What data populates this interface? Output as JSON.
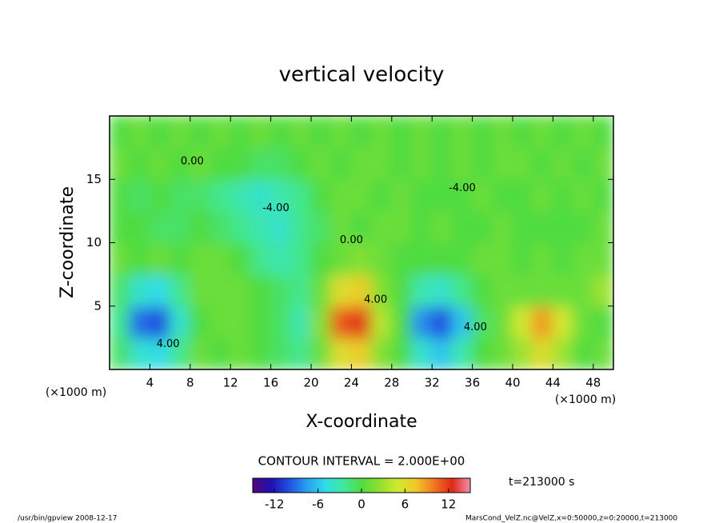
{
  "chart_data": {
    "type": "heatmap",
    "title": "vertical velocity",
    "x_label": "X-coordinate",
    "y_label": "Z-coordinate",
    "x_unit": "(×1000 m)",
    "y_unit": "(×1000 m)",
    "x_edges": [
      0,
      2,
      4,
      6,
      8,
      10,
      12,
      14,
      16,
      18,
      20,
      22,
      24,
      26,
      28,
      30,
      32,
      34,
      36,
      38,
      40,
      42,
      44,
      46,
      48,
      50
    ],
    "y_edges": [
      0,
      2.5,
      5,
      7.5,
      10,
      12.5,
      15,
      17.5,
      20
    ],
    "values": [
      [
        -1,
        -4,
        -5,
        -2,
        1,
        0,
        1,
        0,
        -1,
        -2,
        1,
        6,
        7,
        2,
        0,
        -4,
        -6,
        -3,
        0,
        1,
        3,
        6,
        3,
        0,
        1
      ],
      [
        -2,
        -9,
        -10,
        -4,
        0,
        1,
        1,
        0,
        -1,
        -3,
        2,
        11,
        12,
        4,
        0,
        -8,
        -10,
        -6,
        -1,
        1,
        5,
        9,
        5,
        1,
        0
      ],
      [
        -1,
        -4,
        -5,
        -2,
        1,
        1,
        1,
        0,
        -1,
        -2,
        1,
        6,
        7,
        2,
        0,
        -3,
        -4,
        -2,
        0,
        1,
        1,
        1,
        1,
        1,
        3
      ],
      [
        1,
        0,
        1,
        0,
        1,
        1,
        0,
        -2,
        -3,
        -2,
        0,
        1,
        2,
        1,
        0,
        0,
        0,
        0,
        1,
        1,
        0,
        1,
        0,
        1,
        1
      ],
      [
        0,
        0,
        -1,
        -1,
        0,
        -1,
        -2,
        -3,
        -4,
        -2,
        -1,
        1,
        0,
        1,
        1,
        0,
        1,
        0,
        0,
        1,
        0,
        0,
        0,
        0,
        1
      ],
      [
        0,
        -1,
        0,
        -1,
        -1,
        -2,
        -3,
        -4,
        -3,
        -2,
        0,
        1,
        1,
        0,
        1,
        0,
        0,
        0,
        1,
        0,
        0,
        1,
        0,
        1,
        0
      ],
      [
        1,
        0,
        1,
        0,
        1,
        0,
        0,
        -1,
        -1,
        0,
        1,
        0,
        1,
        1,
        0,
        1,
        0,
        1,
        0,
        1,
        1,
        0,
        1,
        0,
        1
      ],
      [
        0,
        1,
        0,
        1,
        0,
        1,
        0,
        1,
        0,
        1,
        0,
        1,
        0,
        1,
        0,
        1,
        0,
        1,
        0,
        1,
        0,
        1,
        0,
        1,
        0
      ]
    ],
    "xlim": [
      0,
      50
    ],
    "ylim": [
      0,
      20
    ],
    "xticks": [
      4,
      8,
      12,
      16,
      20,
      24,
      28,
      32,
      36,
      40,
      44,
      48
    ],
    "yticks": [
      5,
      10,
      15
    ],
    "clim": [
      -15,
      15
    ],
    "cticks": [
      -12,
      -6,
      0,
      6,
      12
    ],
    "colormap": [
      "#50087c",
      "#2010b0",
      "#2050e0",
      "#2aa0f0",
      "#30dce8",
      "#40e8a0",
      "#50dc40",
      "#90e030",
      "#d0e830",
      "#f0c828",
      "#f07820",
      "#e02818",
      "#f090a8"
    ],
    "contour_labels": [
      {
        "text": "4.00",
        "x": 5.8,
        "y": 2
      },
      {
        "text": "0.00",
        "x": 8.2,
        "y": 16.4
      },
      {
        "text": "-4.00",
        "x": 16.5,
        "y": 12.7
      },
      {
        "text": "0.00",
        "x": 24,
        "y": 10.2
      },
      {
        "text": "4.00",
        "x": 26.4,
        "y": 5.5
      },
      {
        "text": "-4.00",
        "x": 35,
        "y": 14.3
      },
      {
        "text": "4.00",
        "x": 36.3,
        "y": 3.3
      }
    ],
    "contour_interval": "CONTOUR INTERVAL = 2.000E+00",
    "time_label": "t=213000 s",
    "footer_left": "/usr/bin/gpview  2008-12-17",
    "footer_right": "MarsCond_VelZ.nc@VelZ,x=0:50000,z=0:20000,t=213000"
  }
}
